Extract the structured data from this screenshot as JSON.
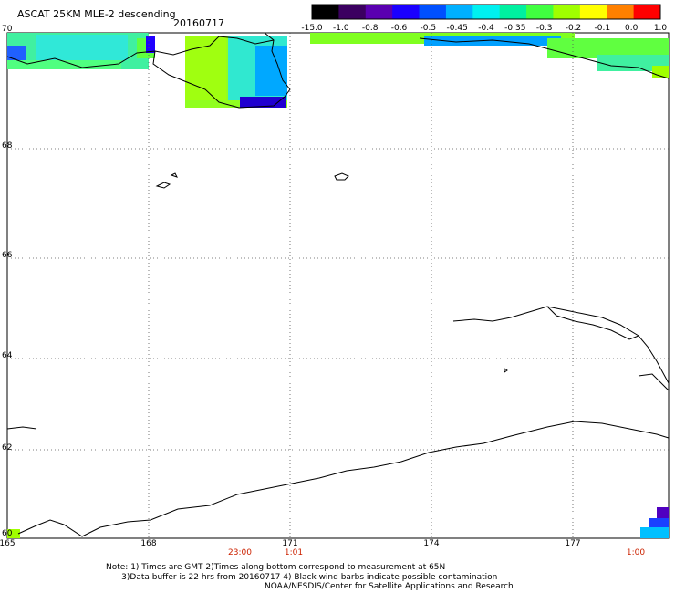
{
  "header": {
    "title": "ASCAT 25KM MLE-2 descending",
    "date": "20160717"
  },
  "colorbar": {
    "labels": [
      "-15.0",
      "-1.0",
      "-0.8",
      "-0.6",
      "-0.5",
      "-0.45",
      "-0.4",
      "-0.35",
      "-0.3",
      "-0.2",
      "-0.1",
      "0.0",
      "1.0"
    ],
    "colors": [
      "#000000",
      "#3b0060",
      "#5a00b0",
      "#1a00ff",
      "#0050ff",
      "#00b0ff",
      "#00f0f0",
      "#00f0a0",
      "#40ff40",
      "#a0ff00",
      "#ffff00",
      "#ff8000",
      "#ff0000"
    ]
  },
  "axes": {
    "lat_labels": [
      "70",
      "68",
      "66",
      "64",
      "62",
      "60"
    ],
    "lon_labels": [
      "165",
      "168",
      "171",
      "174",
      "177"
    ]
  },
  "times": [
    "23:00",
    "1:01",
    "1:00"
  ],
  "footer": {
    "notes": "Note: 1) Times are GMT 2)Times along bottom correspond to measurement at 65N\n      3)Data buffer is 22 hrs from 20160717 4) Black wind barbs indicate possible contamination",
    "credit": "NOAA/NESDIS/Center for Satellite Applications and Research"
  }
}
